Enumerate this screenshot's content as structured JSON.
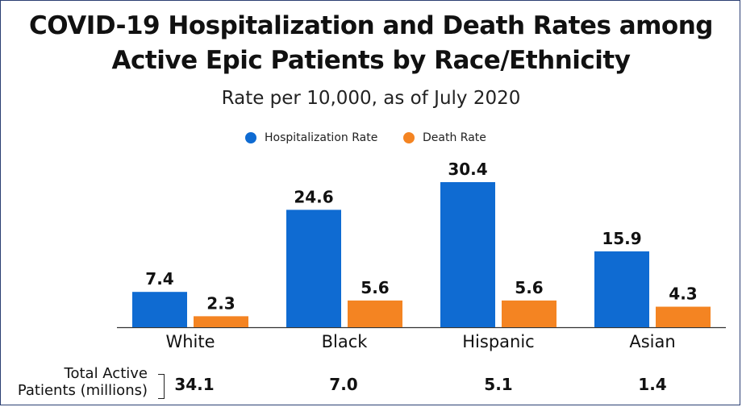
{
  "chart_data": {
    "type": "bar",
    "title_line1": "COVID-19 Hospitalization and Death Rates among",
    "title_line2": "Active Epic Patients by Race/Ethnicity",
    "subtitle": "Rate per 10,000, as of July 2020",
    "categories": [
      "White",
      "Black",
      "Hispanic",
      "Asian"
    ],
    "series": [
      {
        "name": "Hospitalization Rate",
        "color": "#0f6bd2",
        "values": [
          7.4,
          24.6,
          30.4,
          15.9
        ],
        "labels": [
          "7.4",
          "24.6",
          "30.4",
          "15.9"
        ]
      },
      {
        "name": "Death Rate",
        "color": "#f48422",
        "values": [
          2.3,
          5.6,
          5.6,
          4.3
        ],
        "labels": [
          "2.3",
          "5.6",
          "5.6",
          "4.3"
        ]
      }
    ],
    "ylim": [
      0,
      30.4
    ],
    "legend_position": "top-center",
    "grid": false,
    "totals": {
      "label_line1": "Total Active",
      "label_line2": "Patients (millions)",
      "values": [
        "34.1",
        "7.0",
        "5.1",
        "1.4"
      ]
    }
  }
}
